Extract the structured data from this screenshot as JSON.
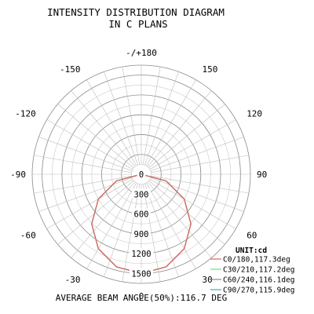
{
  "chart_data": {
    "type": "polar",
    "title_line1": "INTENSITY DISTRIBUTION DIAGRAM",
    "title_line2": "IN C PLANS",
    "angle_labels": [
      "-/+180",
      "150",
      "120",
      "90",
      "60",
      "30",
      "0",
      "-30",
      "-60",
      "-90",
      "-120",
      "-150"
    ],
    "angle_values": [
      180,
      150,
      120,
      90,
      60,
      30,
      0,
      -30,
      -60,
      -90,
      -120,
      -150
    ],
    "radial_labels": [
      "0",
      "300",
      "600",
      "900",
      "1200",
      "1500"
    ],
    "radial_values": [
      0,
      300,
      600,
      900,
      1200,
      1500
    ],
    "rmax": 1650,
    "grid": true,
    "unit_label": "UNIT:cd",
    "legend_position": "bottom-right",
    "series": [
      {
        "name": "C0/180,117.3deg",
        "color": "#e06060",
        "beam_angle": 117.3,
        "gamma": [
          0,
          15,
          30,
          45,
          60,
          75,
          90,
          105,
          120,
          135,
          150,
          165,
          180
        ],
        "intensity": [
          1500,
          1449,
          1299,
          1061,
          750,
          388,
          0,
          0,
          0,
          0,
          0,
          0,
          0
        ]
      },
      {
        "name": "C30/210,117.2deg",
        "color": "#70e070",
        "beam_angle": 117.2,
        "gamma": [
          0,
          15,
          30,
          45,
          60,
          75,
          90,
          105,
          120,
          135,
          150,
          165,
          180
        ],
        "intensity": [
          1500,
          1449,
          1299,
          1061,
          750,
          388,
          0,
          0,
          0,
          0,
          0,
          0,
          0
        ]
      },
      {
        "name": "C60/240,116.1deg",
        "color": "#9a7aa0",
        "beam_angle": 116.1,
        "gamma": [
          0,
          15,
          30,
          45,
          60,
          75,
          90,
          105,
          120,
          135,
          150,
          165,
          180
        ],
        "intensity": [
          1500,
          1449,
          1299,
          1061,
          750,
          388,
          0,
          0,
          0,
          0,
          0,
          0,
          0
        ]
      },
      {
        "name": "C90/270,115.9deg",
        "color": "#30b0c0",
        "beam_angle": 115.9,
        "gamma": [
          0,
          15,
          30,
          45,
          60,
          75,
          90,
          105,
          120,
          135,
          150,
          165,
          180
        ],
        "intensity": [
          1500,
          1449,
          1299,
          1061,
          750,
          388,
          0,
          0,
          0,
          0,
          0,
          0,
          0
        ]
      }
    ],
    "footer": "AVERAGE BEAM ANGLE(50%):116.7 DEG"
  }
}
